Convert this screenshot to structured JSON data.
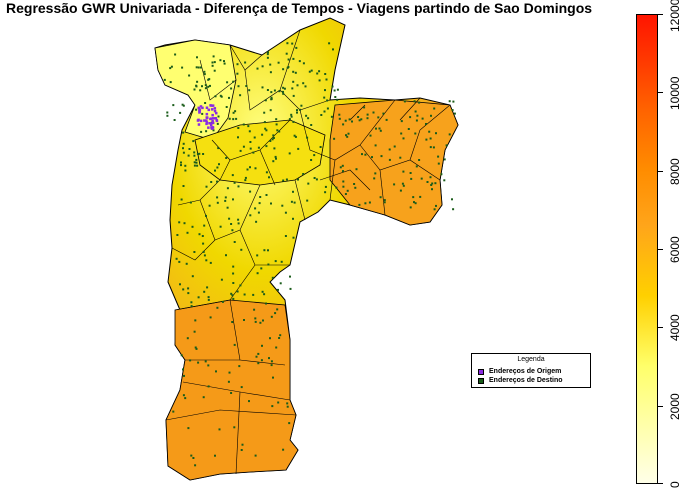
{
  "title": "Regressão GWR Univariada - Diferença de Tempos - Viagens partindo de Sao Domingos",
  "colorbar": {
    "ticks": [
      "0",
      "2000",
      "4000",
      "6000",
      "8000",
      "10000",
      "12000"
    ],
    "tick_values": [
      0,
      2000,
      4000,
      6000,
      8000,
      10000,
      12000
    ],
    "range": [
      0,
      12000
    ]
  },
  "legend": {
    "title": "Legenda",
    "items": [
      {
        "label": "Endereços de Origem",
        "color": "#8a2be2"
      },
      {
        "label": "Endereços de Destino",
        "color": "#1a5c1a"
      }
    ]
  },
  "colors": {
    "low": "#ffffe0",
    "mid": "#ffd700",
    "high": "#ff8c00",
    "max": "#ff0000",
    "border": "#000000"
  }
}
